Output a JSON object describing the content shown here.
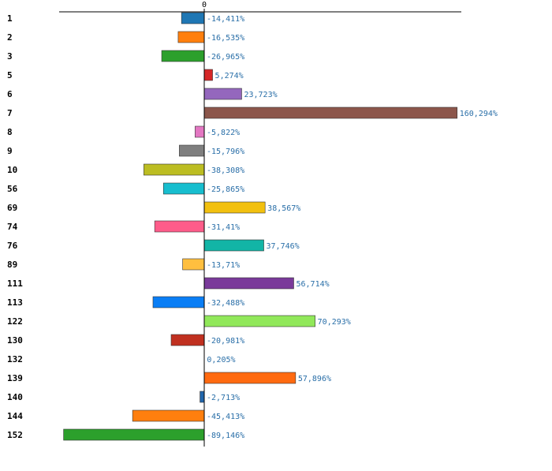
{
  "chart_data": {
    "type": "bar",
    "orientation": "horizontal",
    "zero_tick_label": "0",
    "categories": [
      "1",
      "2",
      "3",
      "5",
      "6",
      "7",
      "8",
      "9",
      "10",
      "56",
      "69",
      "74",
      "76",
      "89",
      "111",
      "113",
      "122",
      "130",
      "132",
      "139",
      "140",
      "144",
      "152"
    ],
    "values": [
      -14.411,
      -16.535,
      -26.965,
      5.274,
      23.723,
      160.294,
      -5.822,
      -15.796,
      -38.308,
      -25.865,
      38.567,
      -31.41,
      37.746,
      -13.71,
      56.714,
      -32.488,
      70.293,
      -20.981,
      0.205,
      57.896,
      -2.713,
      -45.413,
      -89.146
    ],
    "value_labels": [
      "-14,411%",
      "-16,535%",
      "-26,965%",
      "5,274%",
      "23,723%",
      "160,294%",
      "-5,822%",
      "-15,796%",
      "-38,308%",
      "-25,865%",
      "38,567%",
      "-31,41%",
      "37,746%",
      "-13,71%",
      "56,714%",
      "-32,488%",
      "70,293%",
      "-20,981%",
      "0,205%",
      "57,896%",
      "-2,713%",
      "-45,413%",
      "-89,146%"
    ],
    "colors": [
      "#1f77b4",
      "#ff7f0e",
      "#2ca02c",
      "#d62728",
      "#9467bd",
      "#8c564b",
      "#e377c2",
      "#7f7f7f",
      "#bcbd22",
      "#17becf",
      "#f2c00f",
      "#ff5c8a",
      "#12b5a6",
      "#ffbf3f",
      "#7a3a9a",
      "#0a7ef5",
      "#91e85a",
      "#c03020",
      "#3366cc",
      "#ff6a10",
      "#2166ac",
      "#ff7f0e",
      "#2ca02c"
    ],
    "xlim": [
      -92,
      164
    ],
    "title": "",
    "xlabel": "",
    "ylabel": ""
  }
}
